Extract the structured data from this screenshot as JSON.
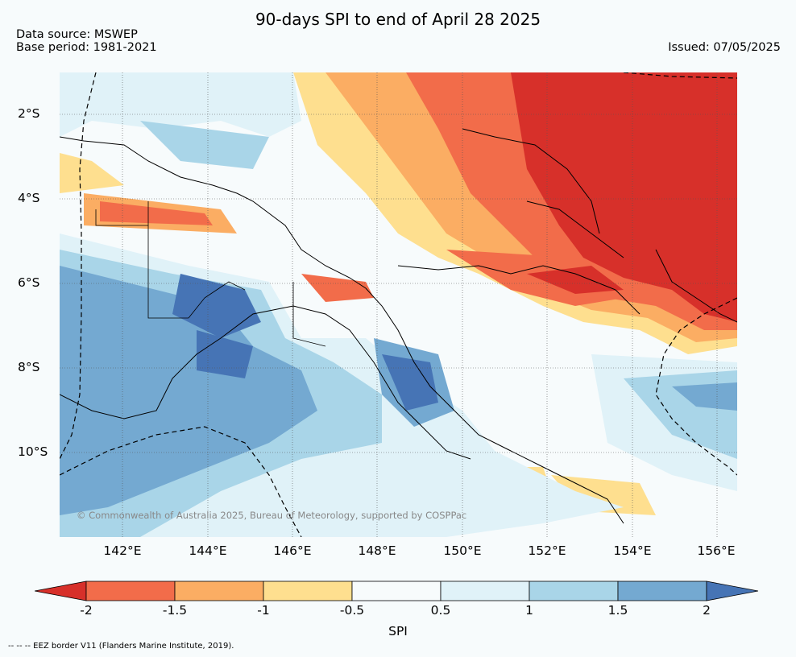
{
  "title": "90-days SPI to end of April 28 2025",
  "source": "Data source: MSWEP",
  "base_period": "Base period: 1981-2021",
  "issued": "Issued: 07/05/2025",
  "lat_labels": [
    "2°S",
    "4°S",
    "6°S",
    "8°S",
    "10°S"
  ],
  "lon_labels": [
    "142°E",
    "144°E",
    "146°E",
    "148°E",
    "150°E",
    "152°E",
    "154°E",
    "156°E"
  ],
  "copyright": "© Commonwealth of Australia 2025, Bureau of Meteorology, supported by COSPPac",
  "colorbar": {
    "label": "SPI",
    "ticks": [
      "-2",
      "-1.5",
      "-1",
      "-0.5",
      "0.5",
      "1",
      "1.5",
      "2"
    ],
    "colors": [
      "#d7302a",
      "#f26c4a",
      "#fbad63",
      "#fedf8f",
      "#f7fbfc",
      "#e0f2f8",
      "#a9d5e8",
      "#74a9d1",
      "#4674b5"
    ]
  },
  "footnote": "-- -- -- EEZ border V11 (Flanders Marine Institute, 2019)."
}
